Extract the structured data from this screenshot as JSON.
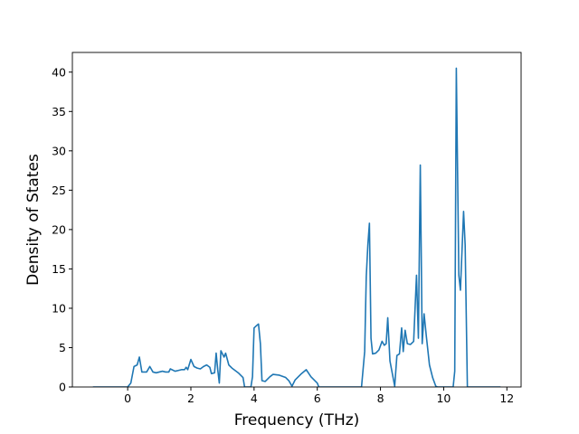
{
  "chart_data": {
    "type": "line",
    "x_label": "Frequency (THz)",
    "y_label": "Density of States",
    "x": [
      -1.1,
      0,
      0.1,
      0.2,
      0.3,
      0.37,
      0.45,
      0.6,
      0.7,
      0.8,
      0.9,
      1.0,
      1.1,
      1.2,
      1.3,
      1.35,
      1.5,
      1.6,
      1.7,
      1.8,
      1.85,
      1.9,
      2.0,
      2.1,
      2.2,
      2.3,
      2.4,
      2.5,
      2.6,
      2.65,
      2.75,
      2.8,
      2.85,
      2.9,
      2.95,
      3.05,
      3.1,
      3.2,
      3.3,
      3.5,
      3.65,
      3.7,
      3.9,
      3.95,
      4.0,
      4.08,
      4.14,
      4.2,
      4.25,
      4.35,
      4.5,
      4.6,
      4.8,
      5.0,
      5.1,
      5.2,
      5.3,
      5.5,
      5.65,
      5.8,
      6.0,
      6.05,
      7.4,
      7.5,
      7.55,
      7.6,
      7.65,
      7.7,
      7.75,
      7.85,
      7.95,
      8.05,
      8.12,
      8.18,
      8.23,
      8.3,
      8.45,
      8.52,
      8.6,
      8.67,
      8.72,
      8.78,
      8.85,
      8.95,
      9.05,
      9.1,
      9.14,
      9.2,
      9.26,
      9.32,
      9.38,
      9.45,
      9.55,
      9.65,
      9.75,
      9.8,
      10.3,
      10.35,
      10.4,
      10.48,
      10.53,
      10.63,
      10.68,
      10.75,
      11.8
    ],
    "series": [
      {
        "color": "#1f77b4",
        "values": [
          0,
          0,
          0.5,
          2.6,
          2.8,
          3.8,
          1.9,
          1.9,
          2.6,
          1.9,
          1.8,
          1.9,
          2.0,
          1.9,
          1.9,
          2.3,
          2.0,
          2.1,
          2.2,
          2.2,
          2.5,
          2.2,
          3.5,
          2.6,
          2.4,
          2.3,
          2.6,
          2.8,
          2.5,
          1.7,
          1.8,
          4.3,
          2.2,
          0.5,
          4.6,
          3.8,
          4.3,
          2.8,
          2.4,
          1.8,
          1.2,
          0,
          0,
          1.3,
          7.5,
          7.8,
          8.0,
          5.5,
          0.8,
          0.7,
          1.3,
          1.6,
          1.5,
          1.2,
          0.8,
          0.1,
          0.9,
          1.7,
          2.2,
          1.3,
          0.5,
          0,
          0,
          4.5,
          14,
          18,
          20.8,
          6.2,
          4.2,
          4.3,
          4.7,
          5.8,
          5.3,
          5.5,
          8.8,
          3.3,
          0.1,
          4.0,
          4.2,
          7.5,
          4.5,
          7.2,
          5.5,
          5.4,
          5.8,
          10.5,
          14.2,
          6.2,
          28.2,
          5.5,
          9.3,
          6.5,
          2.8,
          1.2,
          0.1,
          0,
          0,
          2.0,
          40.5,
          14.2,
          12.3,
          22.3,
          18,
          0,
          0
        ]
      }
    ],
    "xlim": [
      -1.75,
      12.45
    ],
    "ylim": [
      0,
      42.5
    ],
    "xticks": [
      0,
      2,
      4,
      6,
      8,
      10,
      12
    ],
    "yticks": [
      0,
      5,
      10,
      15,
      20,
      25,
      30,
      35,
      40
    ]
  }
}
